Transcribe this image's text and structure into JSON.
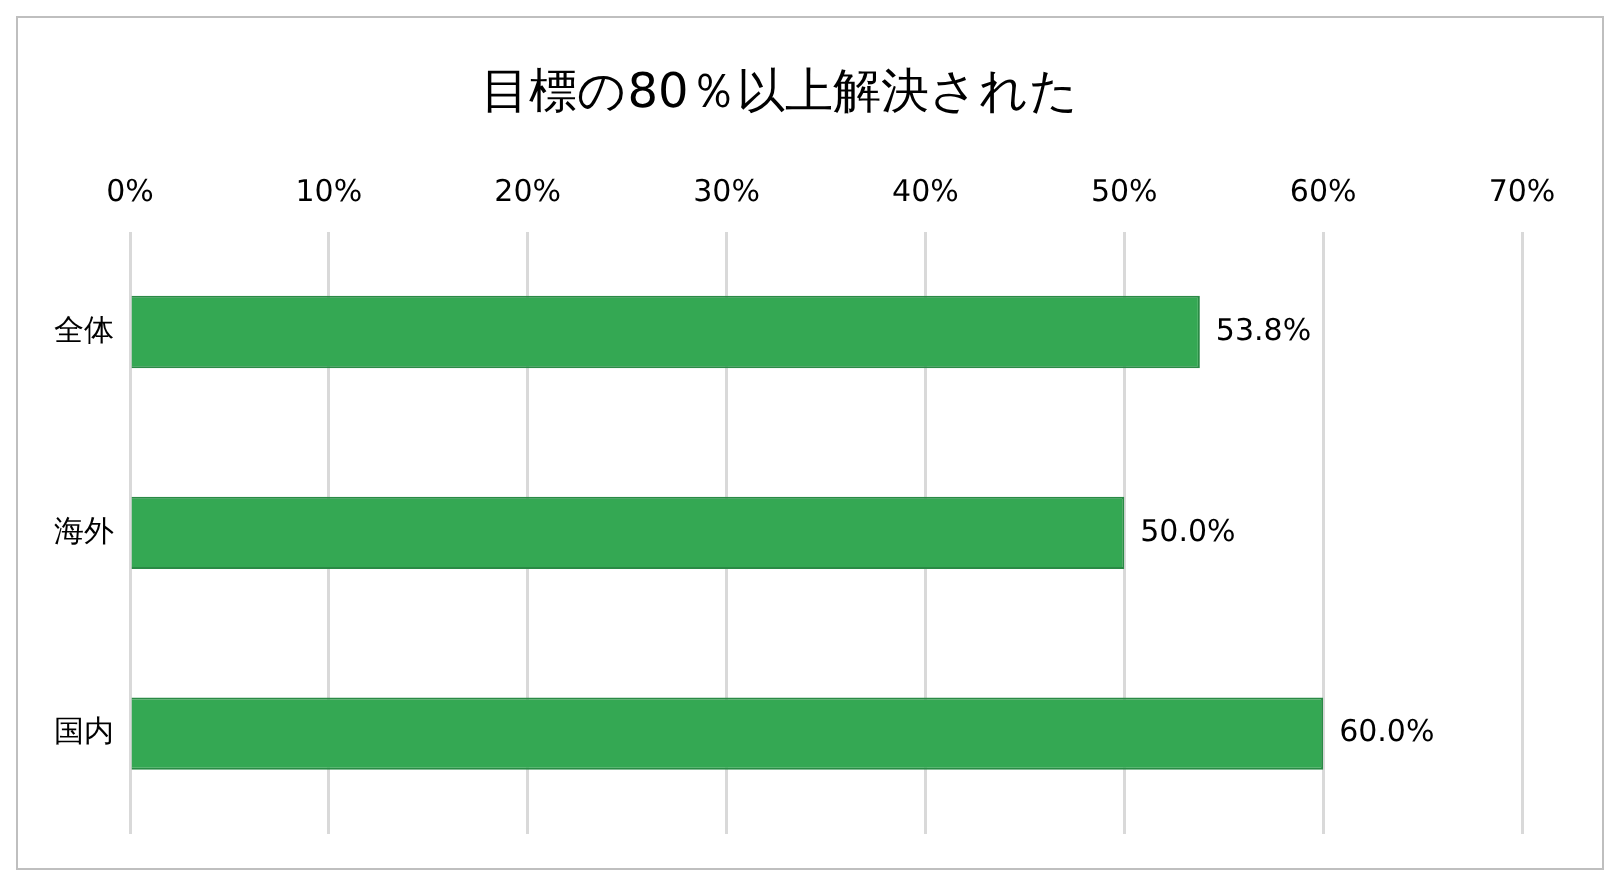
{
  "chart_data": {
    "type": "bar",
    "orientation": "horizontal",
    "title": "目標の80％以上解決された",
    "categories": [
      "全体",
      "海外",
      "国内"
    ],
    "values": [
      53.8,
      50.0,
      60.0
    ],
    "value_labels": [
      "53.8%",
      "50.0%",
      "60.0%"
    ],
    "color": "#34a853",
    "xlim": [
      0,
      70
    ],
    "xticks": [
      {
        "value": 0,
        "label": "0%"
      },
      {
        "value": 10,
        "label": "10%"
      },
      {
        "value": 20,
        "label": "20%"
      },
      {
        "value": 30,
        "label": "30%"
      },
      {
        "value": 40,
        "label": "40%"
      },
      {
        "value": 50,
        "label": "50%"
      },
      {
        "value": 60,
        "label": "60%"
      },
      {
        "value": 70,
        "label": "70%"
      }
    ],
    "grid": "x",
    "legend": false
  }
}
